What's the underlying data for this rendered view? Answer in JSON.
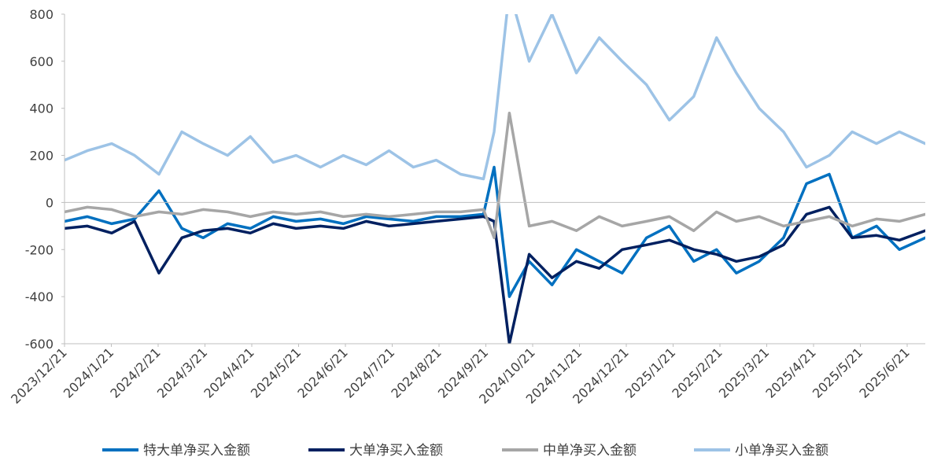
{
  "chart_data": {
    "type": "line",
    "title": "",
    "xlabel": "",
    "ylabel": "",
    "ylim": [
      -600,
      800
    ],
    "yticks": [
      "800",
      "600",
      "400",
      "200",
      "0",
      "-200",
      "-400",
      "-600"
    ],
    "xticks": [
      "2023/12/21",
      "2024/1/21",
      "2024/2/21",
      "2024/3/21",
      "2024/4/21",
      "2024/5/21",
      "2024/6/21",
      "2024/7/21",
      "2024/8/21",
      "2024/9/21",
      "2024/10/21",
      "2024/11/21",
      "2024/12/21",
      "2025/1/21",
      "2025/2/21",
      "2025/3/21",
      "2025/4/21",
      "2025/5/21",
      "2025/6/21"
    ],
    "grid": false,
    "legend_position": "bottom",
    "x_range": [
      "2023-12-21",
      "2025-07-08"
    ],
    "series": [
      {
        "name": "特大单净买入金额",
        "color": "#0070c0",
        "dates": [
          "2023-12-21",
          "2024-01-05",
          "2024-01-21",
          "2024-02-05",
          "2024-02-21",
          "2024-03-07",
          "2024-03-21",
          "2024-04-06",
          "2024-04-21",
          "2024-05-06",
          "2024-05-21",
          "2024-06-06",
          "2024-06-21",
          "2024-07-06",
          "2024-07-21",
          "2024-08-06",
          "2024-08-21",
          "2024-09-06",
          "2024-09-21",
          "2024-09-28",
          "2024-10-08",
          "2024-10-21",
          "2024-11-05",
          "2024-11-21",
          "2024-12-06",
          "2024-12-21",
          "2025-01-06",
          "2025-01-21",
          "2025-02-06",
          "2025-02-21",
          "2025-03-06",
          "2025-03-21",
          "2025-04-06",
          "2025-04-21",
          "2025-05-06",
          "2025-05-21",
          "2025-06-06",
          "2025-06-21",
          "2025-07-08"
        ],
        "values": [
          -80,
          -60,
          -90,
          -70,
          50,
          -110,
          -150,
          -90,
          -110,
          -60,
          -80,
          -70,
          -90,
          -60,
          -70,
          -80,
          -60,
          -60,
          -50,
          150,
          -400,
          -250,
          -350,
          -200,
          -250,
          -300,
          -150,
          -100,
          -250,
          -200,
          -300,
          -250,
          -150,
          80,
          120,
          -150,
          -100,
          -200,
          -150
        ]
      },
      {
        "name": "大单净买入金额",
        "color": "#002060",
        "dates": [
          "2023-12-21",
          "2024-01-05",
          "2024-01-21",
          "2024-02-05",
          "2024-02-21",
          "2024-03-07",
          "2024-03-21",
          "2024-04-06",
          "2024-04-21",
          "2024-05-06",
          "2024-05-21",
          "2024-06-06",
          "2024-06-21",
          "2024-07-06",
          "2024-07-21",
          "2024-08-06",
          "2024-08-21",
          "2024-09-06",
          "2024-09-21",
          "2024-09-28",
          "2024-10-08",
          "2024-10-21",
          "2024-11-05",
          "2024-11-21",
          "2024-12-06",
          "2024-12-21",
          "2025-01-06",
          "2025-01-21",
          "2025-02-06",
          "2025-02-21",
          "2025-03-06",
          "2025-03-21",
          "2025-04-06",
          "2025-04-21",
          "2025-05-06",
          "2025-05-21",
          "2025-06-06",
          "2025-06-21",
          "2025-07-08"
        ],
        "values": [
          -110,
          -100,
          -130,
          -80,
          -300,
          -150,
          -120,
          -110,
          -130,
          -90,
          -110,
          -100,
          -110,
          -80,
          -100,
          -90,
          -80,
          -70,
          -60,
          -80,
          -600,
          -220,
          -320,
          -250,
          -280,
          -200,
          -180,
          -160,
          -200,
          -220,
          -250,
          -230,
          -180,
          -50,
          -20,
          -150,
          -140,
          -160,
          -120
        ]
      },
      {
        "name": "中单净买入金额",
        "color": "#a6a6a6",
        "dates": [
          "2023-12-21",
          "2024-01-05",
          "2024-01-21",
          "2024-02-05",
          "2024-02-21",
          "2024-03-07",
          "2024-03-21",
          "2024-04-06",
          "2024-04-21",
          "2024-05-06",
          "2024-05-21",
          "2024-06-06",
          "2024-06-21",
          "2024-07-06",
          "2024-07-21",
          "2024-08-06",
          "2024-08-21",
          "2024-09-06",
          "2024-09-21",
          "2024-09-28",
          "2024-10-08",
          "2024-10-21",
          "2024-11-05",
          "2024-11-21",
          "2024-12-06",
          "2024-12-21",
          "2025-01-06",
          "2025-01-21",
          "2025-02-06",
          "2025-02-21",
          "2025-03-06",
          "2025-03-21",
          "2025-04-06",
          "2025-04-21",
          "2025-05-06",
          "2025-05-21",
          "2025-06-06",
          "2025-06-21",
          "2025-07-08"
        ],
        "values": [
          -40,
          -20,
          -30,
          -60,
          -40,
          -50,
          -30,
          -40,
          -60,
          -40,
          -50,
          -40,
          -60,
          -50,
          -60,
          -50,
          -40,
          -40,
          -30,
          -150,
          380,
          -100,
          -80,
          -120,
          -60,
          -100,
          -80,
          -60,
          -120,
          -40,
          -80,
          -60,
          -100,
          -80,
          -60,
          -100,
          -70,
          -80,
          -50
        ]
      },
      {
        "name": "小单净买入金额",
        "color": "#9dc3e6",
        "dates": [
          "2023-12-21",
          "2024-01-05",
          "2024-01-21",
          "2024-02-05",
          "2024-02-21",
          "2024-03-07",
          "2024-03-21",
          "2024-04-06",
          "2024-04-21",
          "2024-05-06",
          "2024-05-21",
          "2024-06-06",
          "2024-06-21",
          "2024-07-06",
          "2024-07-21",
          "2024-08-06",
          "2024-08-21",
          "2024-09-06",
          "2024-09-21",
          "2024-09-28",
          "2024-10-08",
          "2024-10-21",
          "2024-11-05",
          "2024-11-21",
          "2024-12-06",
          "2024-12-21",
          "2025-01-06",
          "2025-01-21",
          "2025-02-06",
          "2025-02-21",
          "2025-03-06",
          "2025-03-21",
          "2025-04-06",
          "2025-04-21",
          "2025-05-06",
          "2025-05-21",
          "2025-06-06",
          "2025-06-21",
          "2025-07-08"
        ],
        "values": [
          180,
          220,
          250,
          200,
          120,
          300,
          250,
          200,
          280,
          170,
          200,
          150,
          200,
          160,
          220,
          150,
          180,
          120,
          100,
          300,
          900,
          600,
          800,
          550,
          700,
          600,
          500,
          350,
          450,
          700,
          550,
          400,
          300,
          150,
          200,
          300,
          250,
          300,
          250
        ]
      }
    ]
  },
  "legend": {
    "items": [
      {
        "label": "特大单净买入金额",
        "color": "#0070c0"
      },
      {
        "label": "大单净买入金额",
        "color": "#002060"
      },
      {
        "label": "中单净买入金额",
        "color": "#a6a6a6"
      },
      {
        "label": "小单净买入金额",
        "color": "#9dc3e6"
      }
    ]
  }
}
